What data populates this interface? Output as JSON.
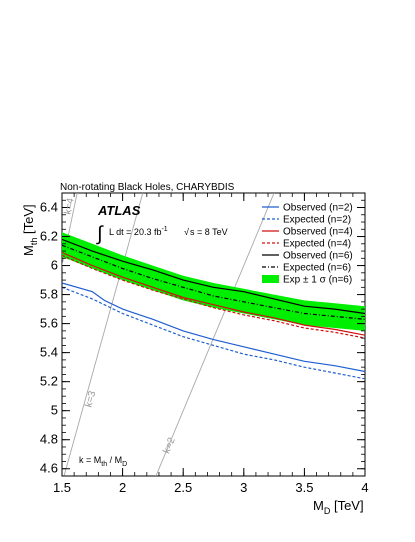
{
  "chart_data": {
    "type": "line",
    "title": "Non-rotating Black Holes, CHARYBDIS",
    "experiment": "ATLAS",
    "luminosity_label": "L dt = 20.3 fb",
    "luminosity_superscript": "-1",
    "energy_label": "s = 8 TeV",
    "k_definition": "k = M",
    "k_def_sub1": "th",
    "k_def_mid": " / M",
    "k_def_sub2": "D",
    "xlabel_main": "M",
    "xlabel_sub": "D",
    "xlabel_unit": " [TeV]",
    "ylabel_main": "M",
    "ylabel_sub": "th",
    "ylabel_unit": " [TeV]",
    "xlim": [
      1.5,
      4.0
    ],
    "ylim": [
      4.55,
      6.5
    ],
    "x_ticks": [
      "1.5",
      "2",
      "2.5",
      "3",
      "3.5",
      "4"
    ],
    "y_ticks": [
      "4.6",
      "4.8",
      "5",
      "5.2",
      "5.4",
      "5.6",
      "5.8",
      "6",
      "6.2",
      "6.4"
    ],
    "k_lines": [
      {
        "label": "k=2",
        "k": 2
      },
      {
        "label": "k=3",
        "k": 3
      },
      {
        "label": "k=4",
        "k": 4
      }
    ],
    "band": {
      "name": "Exp ± 1 σ (n=6)",
      "color": "#00ee00",
      "x": [
        1.5,
        1.75,
        2.0,
        2.25,
        2.5,
        2.75,
        3.0,
        3.25,
        3.5,
        3.75,
        4.0
      ],
      "upper": [
        6.23,
        6.15,
        6.07,
        6.0,
        5.93,
        5.88,
        5.84,
        5.8,
        5.76,
        5.74,
        5.72
      ],
      "lower": [
        6.06,
        5.98,
        5.9,
        5.83,
        5.76,
        5.71,
        5.67,
        5.63,
        5.59,
        5.57,
        5.55
      ]
    },
    "series": [
      {
        "name": "Observed (n=2)",
        "color": "#1f5fd0",
        "dash": "none",
        "x": [
          1.5,
          1.75,
          1.85,
          2.0,
          2.25,
          2.5,
          2.75,
          3.0,
          3.25,
          3.5,
          3.75,
          4.0
        ],
        "y": [
          5.88,
          5.82,
          5.76,
          5.7,
          5.63,
          5.55,
          5.49,
          5.44,
          5.39,
          5.34,
          5.31,
          5.27
        ]
      },
      {
        "name": "Expected (n=2)",
        "color": "#1f5fd0",
        "dash": "3,2",
        "x": [
          1.5,
          1.75,
          2.0,
          2.25,
          2.5,
          2.75,
          3.0,
          3.25,
          3.5,
          3.75,
          4.0
        ],
        "y": [
          5.85,
          5.77,
          5.67,
          5.59,
          5.51,
          5.45,
          5.39,
          5.35,
          5.3,
          5.26,
          5.22
        ]
      },
      {
        "name": "Observed (n=4)",
        "color": "#d01010",
        "dash": "none",
        "x": [
          1.5,
          1.75,
          2.0,
          2.25,
          2.5,
          2.75,
          3.0,
          3.25,
          3.5,
          3.75,
          4.0
        ],
        "y": [
          6.09,
          6.0,
          5.92,
          5.85,
          5.78,
          5.73,
          5.68,
          5.64,
          5.59,
          5.56,
          5.52
        ]
      },
      {
        "name": "Expected (n=4)",
        "color": "#d01010",
        "dash": "3,2",
        "x": [
          1.5,
          1.75,
          2.0,
          2.25,
          2.5,
          2.75,
          3.0,
          3.25,
          3.5,
          3.75,
          4.0
        ],
        "y": [
          6.07,
          5.98,
          5.9,
          5.83,
          5.77,
          5.71,
          5.66,
          5.62,
          5.57,
          5.54,
          5.5
        ]
      },
      {
        "name": "Observed (n=6)",
        "color": "#000000",
        "dash": "none",
        "x": [
          1.5,
          1.75,
          2.0,
          2.25,
          2.5,
          2.75,
          3.0,
          3.25,
          3.5,
          3.75,
          4.0
        ],
        "y": [
          6.18,
          6.1,
          6.03,
          5.97,
          5.9,
          5.85,
          5.82,
          5.77,
          5.72,
          5.7,
          5.67
        ]
      },
      {
        "name": "Expected (n=6)",
        "color": "#000000",
        "dash": "4,2,1,2",
        "x": [
          1.5,
          1.75,
          2.0,
          2.25,
          2.5,
          2.75,
          3.0,
          3.25,
          3.5,
          3.75,
          4.0
        ],
        "y": [
          6.14,
          6.06,
          5.98,
          5.91,
          5.85,
          5.79,
          5.75,
          5.71,
          5.67,
          5.65,
          5.63
        ]
      }
    ]
  }
}
